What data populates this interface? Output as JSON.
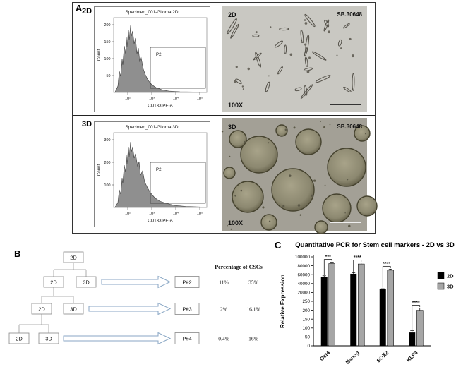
{
  "panel_a": {
    "label": "A",
    "rows": [
      {
        "condition": "2D",
        "flow": {
          "title": "Specimen_001-Glioma 2D",
          "ylabel": "Count",
          "xlabel": "CD133 PE-A",
          "gate_label": "P2",
          "yticks": [
            "200",
            "150",
            "100",
            "50"
          ],
          "xticks": [
            "10²",
            "10³",
            "10⁴",
            "10⁵"
          ]
        },
        "photo": {
          "corner_label": "2D",
          "sample_label": "SB.30648",
          "magnification": "100X"
        }
      },
      {
        "condition": "3D",
        "flow": {
          "title": "Specimen_001-Glioma 3D",
          "ylabel": "Count",
          "xlabel": "CD133 PE-A",
          "gate_label": "P2",
          "yticks": [
            "300",
            "200",
            "100"
          ],
          "xticks": [
            "10²",
            "10³",
            "10⁴",
            "10⁵"
          ]
        },
        "photo": {
          "corner_label": "3D",
          "sample_label": "SB.30648",
          "magnification": "100X"
        }
      }
    ]
  },
  "panel_b": {
    "label": "B",
    "header": "Percentage of CSCs",
    "root": "2D",
    "generations": [
      {
        "left": "2D",
        "right": "3D",
        "passage": "P#2",
        "pct_2d": "11%",
        "pct_3d": "35%"
      },
      {
        "left": "2D",
        "right": "3D",
        "passage": "P#3",
        "pct_2d": "2%",
        "pct_3d": "16.1%"
      },
      {
        "left": "2D",
        "right": "3D",
        "passage": "P#4",
        "pct_2d": "0.4%",
        "pct_3d": "16%"
      }
    ]
  },
  "panel_c": {
    "label": "C"
  },
  "chart_data": {
    "type": "bar",
    "title": "Quantitative PCR for Stem cell markers - 2D vs 3D",
    "ylabel": "Relative Expression",
    "categories": [
      "Oct4",
      "Nanog",
      "SOX2",
      "KLF4"
    ],
    "series": [
      {
        "name": "2D",
        "color": "#000000",
        "values": [
          55000,
          62000,
          27000,
          75
        ]
      },
      {
        "name": "3D",
        "color": "#a6a6a6",
        "values": [
          85000,
          84000,
          70000,
          200
        ]
      }
    ],
    "error_bars": [
      [
        2500,
        2500,
        1500,
        10
      ],
      [
        3000,
        2500,
        2500,
        12
      ]
    ],
    "significance": [
      "***",
      "****",
      "****",
      "****"
    ],
    "axis": {
      "lower_ticks": [
        0,
        50,
        100,
        150,
        200,
        250
      ],
      "upper_ticks": [
        20000,
        40000,
        60000,
        80000,
        100000
      ]
    },
    "legend_position": "right"
  }
}
